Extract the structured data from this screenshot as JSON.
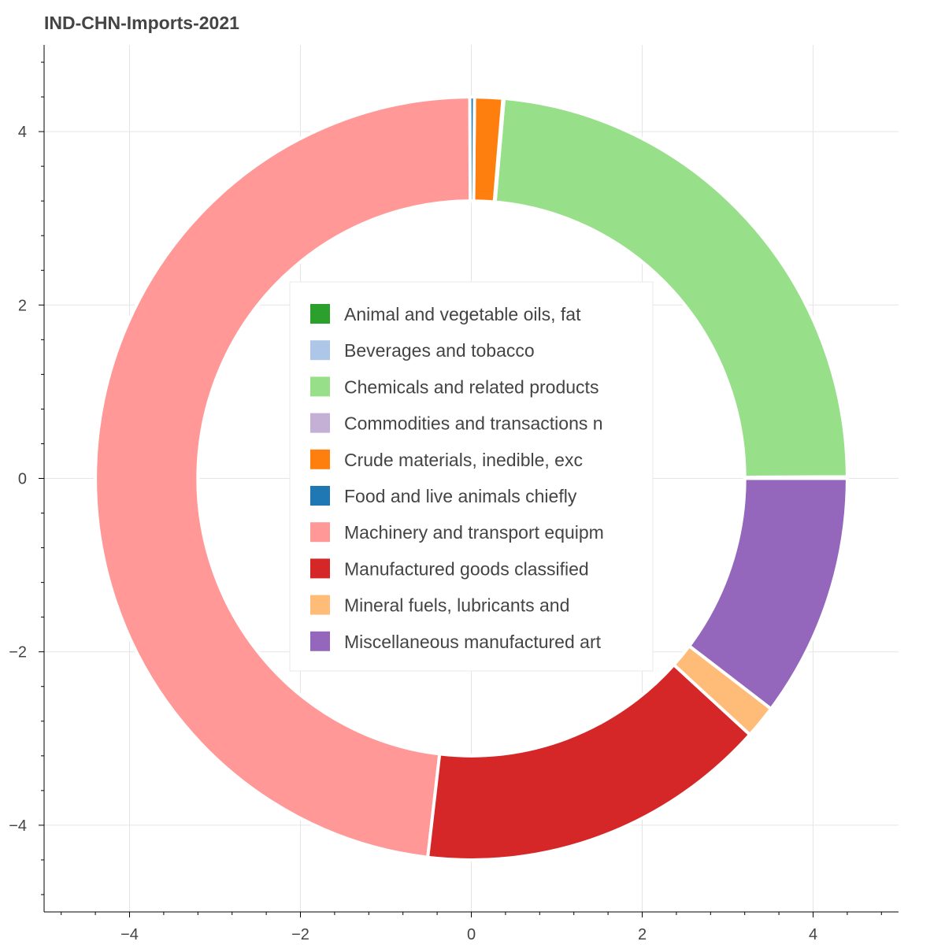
{
  "chart_data": {
    "type": "pie",
    "title": "IND-CHN-Imports-2021",
    "xlim": [
      -5,
      5
    ],
    "ylim": [
      -5,
      5
    ],
    "x_ticks": [
      -4,
      -2,
      0,
      2,
      4
    ],
    "y_ticks": [
      4,
      2,
      0,
      -2,
      -4
    ],
    "x_tick_labels": [
      "−4",
      "−2",
      "0",
      "2",
      "4"
    ],
    "y_tick_labels": [
      "4",
      "2",
      "0",
      "−2",
      "−4"
    ],
    "grid": true,
    "legend_position": "center",
    "inner_radius": 3.2,
    "outer_radius": 4.4,
    "slices": [
      {
        "label": "Animal and vegetable oils, fat",
        "value": 0.05,
        "color": "#2ca02c"
      },
      {
        "label": "Beverages and tobacco",
        "value": 0.02,
        "color": "#aec7e8"
      },
      {
        "label": "Chemicals and related products",
        "value": 23.5,
        "color": "#98df8a"
      },
      {
        "label": "Commodities and transactions n",
        "value": 0.05,
        "color": "#c5b0d5"
      },
      {
        "label": "Crude materials, inedible, exc",
        "value": 1.2,
        "color": "#ff7f0e"
      },
      {
        "label": "Food and live animals chiefly",
        "value": 0.2,
        "color": "#1f77b4"
      },
      {
        "label": "Machinery and transport equipm",
        "value": 48.0,
        "color": "#ff9896"
      },
      {
        "label": "Manufactured goods classified",
        "value": 15.1,
        "color": "#d62728"
      },
      {
        "label": "Mineral fuels, lubricants and",
        "value": 1.4,
        "color": "#ffbb78"
      },
      {
        "label": "Miscellaneous manufactured art",
        "value": 10.3,
        "color": "#9467bd"
      }
    ]
  }
}
